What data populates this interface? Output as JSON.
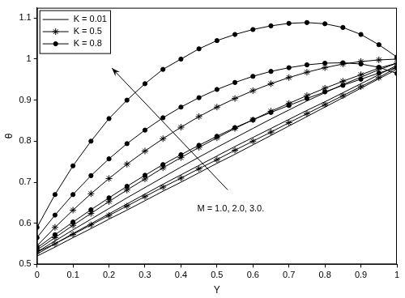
{
  "chart_data": {
    "type": "line",
    "x_label": "Y",
    "y_label": "θ",
    "x": [
      0,
      0.05,
      0.1,
      0.15,
      0.2,
      0.25,
      0.3,
      0.35,
      0.4,
      0.45,
      0.5,
      0.55,
      0.6,
      0.65,
      0.7,
      0.75,
      0.8,
      0.85,
      0.9,
      0.95,
      1
    ],
    "xlim": [
      0,
      1
    ],
    "xticks": [
      0,
      0.1,
      0.2,
      0.3,
      0.4,
      0.5,
      0.6,
      0.7,
      0.8,
      0.9,
      1
    ],
    "ylim": [
      0.5,
      1.125
    ],
    "yticks": [
      0.5,
      0.6,
      0.7,
      0.8,
      0.9,
      1,
      1.1
    ],
    "grid": false,
    "legend": "top-left",
    "annotations": [
      {
        "text": "M = 1.0, 2.0, 3.0."
      }
    ],
    "series": [
      {
        "name": "K = 0.01",
        "color": "#000000",
        "marker": "none",
        "line_style": "solid",
        "values": [
          0.52,
          0.542,
          0.565,
          0.587,
          0.61,
          0.632,
          0.655,
          0.678,
          0.7,
          0.723,
          0.746,
          0.768,
          0.791,
          0.814,
          0.837,
          0.86,
          0.883,
          0.906,
          0.929,
          0.952,
          0.975
        ]
      },
      {
        "color": "#000000",
        "marker": "none",
        "line_style": "solid",
        "values": [
          0.525,
          0.55,
          0.575,
          0.599,
          0.623,
          0.647,
          0.671,
          0.695,
          0.718,
          0.741,
          0.764,
          0.787,
          0.809,
          0.831,
          0.853,
          0.875,
          0.896,
          0.918,
          0.94,
          0.962,
          0.985
        ]
      },
      {
        "color": "#000000",
        "marker": "none",
        "line_style": "solid",
        "values": [
          0.53,
          0.557,
          0.584,
          0.61,
          0.636,
          0.662,
          0.687,
          0.712,
          0.737,
          0.761,
          0.785,
          0.808,
          0.831,
          0.854,
          0.876,
          0.898,
          0.918,
          0.938,
          0.956,
          0.974,
          0.99
        ]
      },
      {
        "name": "K = 0.5",
        "color": "#000000",
        "marker": "star",
        "line_style": "solid",
        "values": [
          0.53,
          0.55,
          0.573,
          0.596,
          0.619,
          0.642,
          0.665,
          0.688,
          0.71,
          0.733,
          0.755,
          0.778,
          0.8,
          0.822,
          0.845,
          0.867,
          0.889,
          0.911,
          0.933,
          0.955,
          0.98
        ]
      },
      {
        "color": "#000000",
        "marker": "star",
        "line_style": "solid",
        "values": [
          0.535,
          0.565,
          0.595,
          0.624,
          0.653,
          0.681,
          0.708,
          0.735,
          0.76,
          0.785,
          0.808,
          0.831,
          0.852,
          0.873,
          0.892,
          0.911,
          0.929,
          0.946,
          0.962,
          0.978,
          0.99
        ]
      },
      {
        "color": "#000000",
        "marker": "star",
        "line_style": "solid",
        "values": [
          0.545,
          0.59,
          0.632,
          0.672,
          0.709,
          0.744,
          0.776,
          0.806,
          0.834,
          0.86,
          0.883,
          0.904,
          0.923,
          0.94,
          0.955,
          0.968,
          0.979,
          0.988,
          0.994,
          0.998,
          1.0
        ]
      },
      {
        "name": "K = 0.8",
        "color": "#000000",
        "marker": "circle",
        "line_style": "solid",
        "values": [
          0.54,
          0.572,
          0.603,
          0.633,
          0.662,
          0.69,
          0.717,
          0.743,
          0.767,
          0.79,
          0.812,
          0.833,
          0.852,
          0.87,
          0.887,
          0.904,
          0.92,
          0.936,
          0.951,
          0.966,
          0.98
        ]
      },
      {
        "color": "#000000",
        "marker": "circle",
        "line_style": "solid",
        "values": [
          0.565,
          0.62,
          0.67,
          0.716,
          0.757,
          0.794,
          0.827,
          0.857,
          0.883,
          0.906,
          0.926,
          0.943,
          0.958,
          0.97,
          0.979,
          0.986,
          0.99,
          0.991,
          0.988,
          0.98,
          0.965
        ]
      },
      {
        "color": "#000000",
        "marker": "circle",
        "line_style": "solid",
        "values": [
          0.59,
          0.67,
          0.74,
          0.8,
          0.855,
          0.9,
          0.94,
          0.975,
          1.0,
          1.025,
          1.045,
          1.06,
          1.072,
          1.081,
          1.087,
          1.089,
          1.086,
          1.077,
          1.06,
          1.035,
          1.005
        ]
      }
    ]
  }
}
